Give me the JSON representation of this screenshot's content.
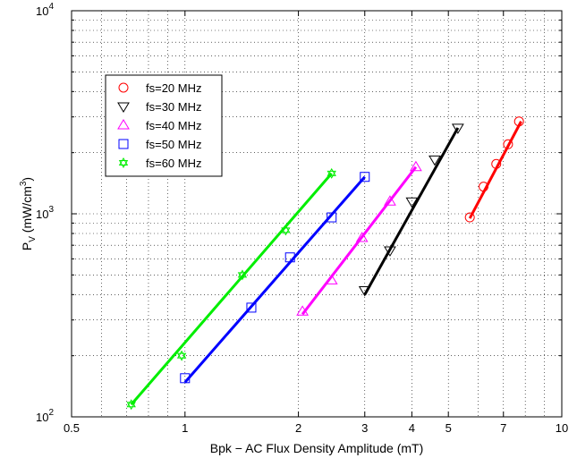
{
  "chart_data": {
    "type": "scatter",
    "xlabel": "Bpk − AC Flux Density Amplitude (mT)",
    "ylabel": {
      "main": "P",
      "sub": "V",
      "rest": " (mW/cm",
      "sup": "3",
      "end": ")"
    },
    "x_scale": "log",
    "y_scale": "log",
    "xlim": [
      0.5,
      10
    ],
    "ylim": [
      100,
      10000
    ],
    "x_ticks": [
      {
        "value": 0.5,
        "label": "0.5"
      },
      {
        "value": 1,
        "label": "1"
      },
      {
        "value": 2,
        "label": "2"
      },
      {
        "value": 3,
        "label": "3"
      },
      {
        "value": 4,
        "label": "4"
      },
      {
        "value": 5,
        "label": "5"
      },
      {
        "value": 7,
        "label": "7"
      },
      {
        "value": 10,
        "label": "10"
      }
    ],
    "y_ticks": [
      {
        "value": 100,
        "base": "10",
        "exp": "2"
      },
      {
        "value": 1000,
        "base": "10",
        "exp": "3"
      },
      {
        "value": 10000,
        "base": "10",
        "exp": "4"
      }
    ],
    "grid": true,
    "legend_position": "top-left",
    "series": [
      {
        "name": "fs=20 MHz",
        "marker": "circle",
        "color": "#ff0000",
        "x": [
          5.7,
          6.2,
          6.7,
          7.2,
          7.7
        ],
        "y": [
          960,
          1360,
          1760,
          2200,
          2850
        ],
        "fit": {
          "x": [
            5.7,
            7.8
          ],
          "y": [
            950,
            2850
          ]
        }
      },
      {
        "name": "fs=30 MHz",
        "marker": "triangle-down",
        "color": "#000000",
        "x": [
          3.0,
          3.5,
          4.0,
          4.6,
          5.3
        ],
        "y": [
          420,
          660,
          1150,
          1850,
          2650
        ],
        "fit": {
          "x": [
            3.0,
            5.3
          ],
          "y": [
            400,
            2650
          ]
        }
      },
      {
        "name": "fs=40 MHz",
        "marker": "triangle-up",
        "color": "#ff00ff",
        "x": [
          2.05,
          2.45,
          2.95,
          3.5,
          4.1
        ],
        "y": [
          330,
          470,
          760,
          1150,
          1700
        ],
        "fit": {
          "x": [
            2.05,
            4.1
          ],
          "y": [
            320,
            1700
          ]
        }
      },
      {
        "name": "fs=50 MHz",
        "marker": "square",
        "color": "#0000ff",
        "x": [
          1.0,
          1.5,
          1.9,
          2.45,
          3.0
        ],
        "y": [
          155,
          345,
          610,
          960,
          1520
        ],
        "fit": {
          "x": [
            1.0,
            3.0
          ],
          "y": [
            148,
            1520
          ]
        }
      },
      {
        "name": "fs=60 MHz",
        "marker": "hexagram",
        "color": "#00ee00",
        "x": [
          0.72,
          0.98,
          1.42,
          1.85,
          2.45
        ],
        "y": [
          115,
          200,
          500,
          830,
          1580
        ],
        "fit": {
          "x": [
            0.72,
            2.45
          ],
          "y": [
            115,
            1580
          ]
        }
      }
    ]
  }
}
